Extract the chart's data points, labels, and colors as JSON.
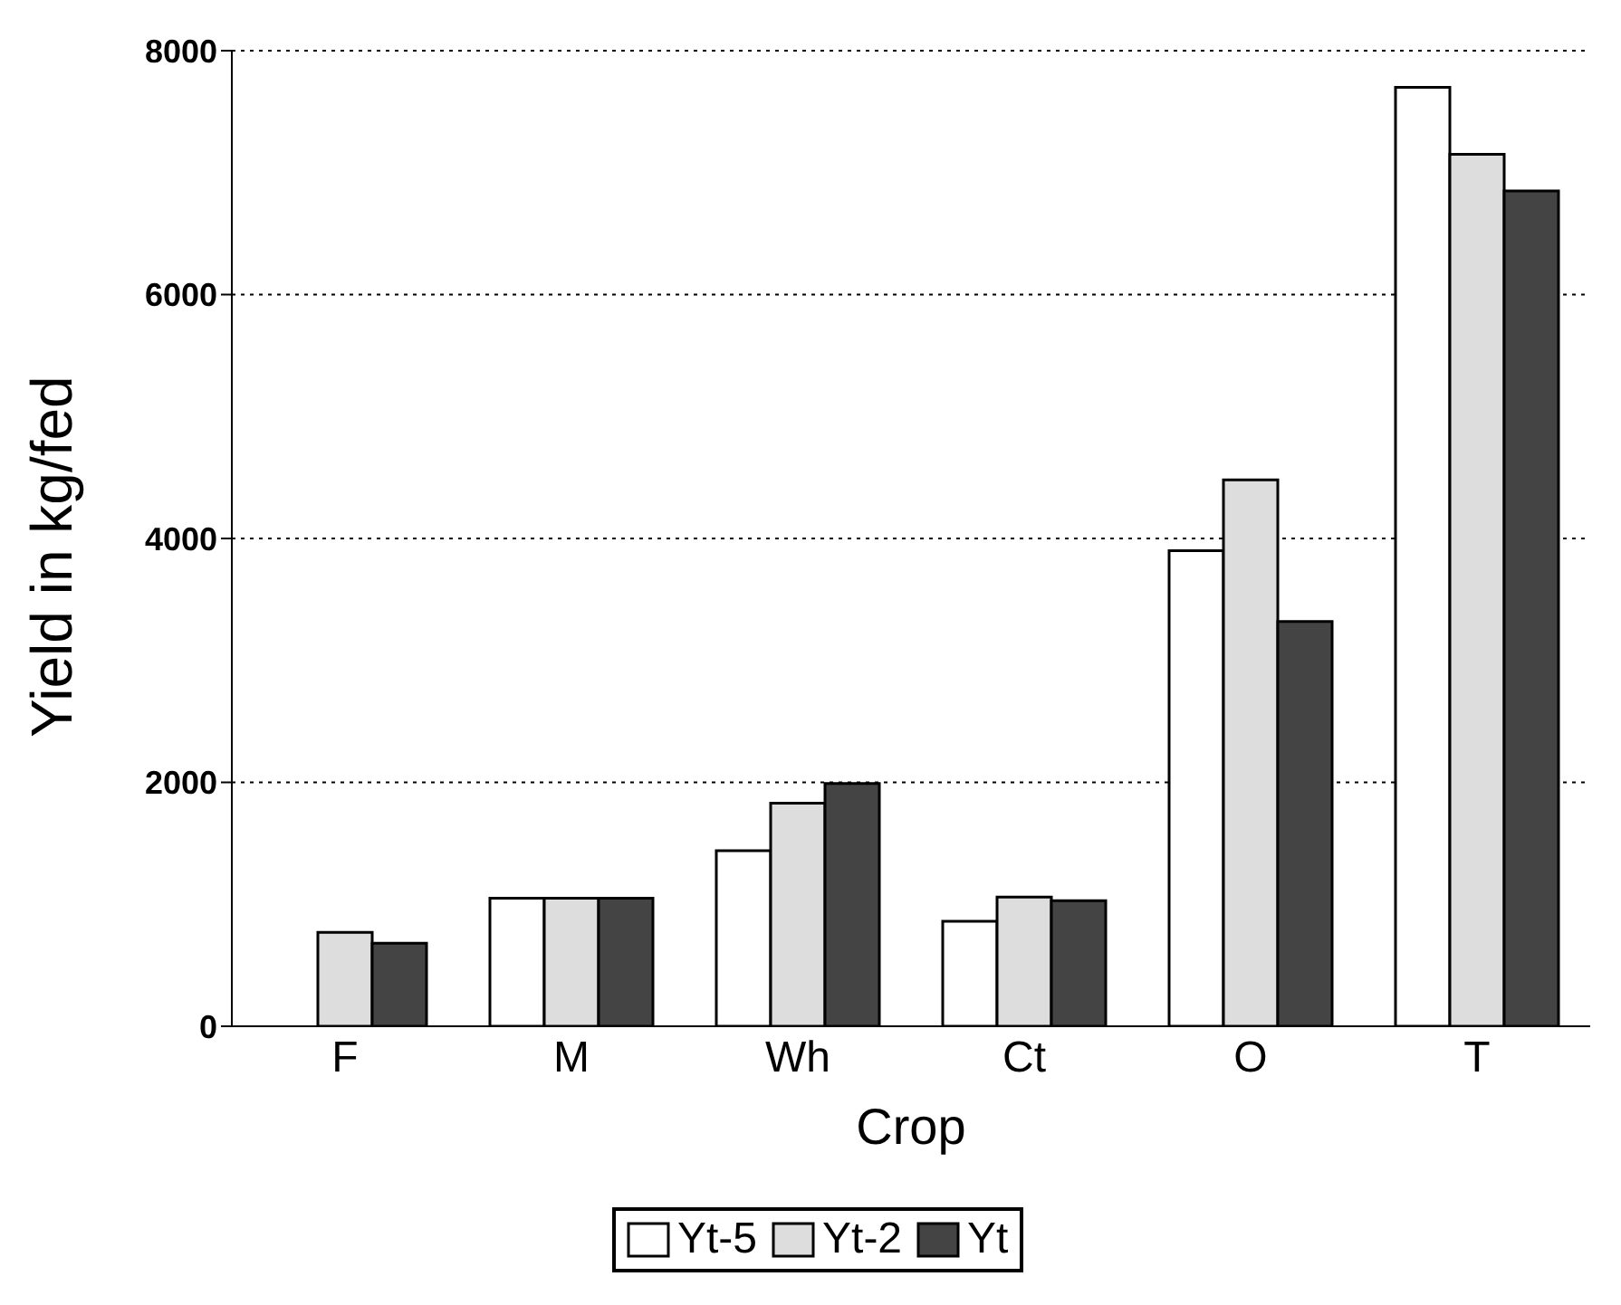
{
  "chart_data": {
    "type": "bar",
    "xlabel": "Crop",
    "ylabel": "Yield in kg/fed",
    "categories": [
      "F",
      "M",
      "Wh",
      "Ct",
      "O",
      "T"
    ],
    "series": [
      {
        "name": "Yt-5",
        "color": "#ffffff",
        "values": [
          null,
          1050,
          1440,
          860,
          3900,
          7700
        ]
      },
      {
        "name": "Yt-2",
        "color": "#dddddd",
        "values": [
          770,
          1050,
          1830,
          1060,
          4480,
          7150
        ]
      },
      {
        "name": "Yt",
        "color": "#444444",
        "values": [
          680,
          1050,
          1990,
          1030,
          3320,
          6850
        ]
      }
    ],
    "ylim": [
      0,
      8000
    ],
    "yticks": [
      0,
      2000,
      4000,
      6000,
      8000
    ],
    "grid": "y",
    "legend": "bottom"
  }
}
